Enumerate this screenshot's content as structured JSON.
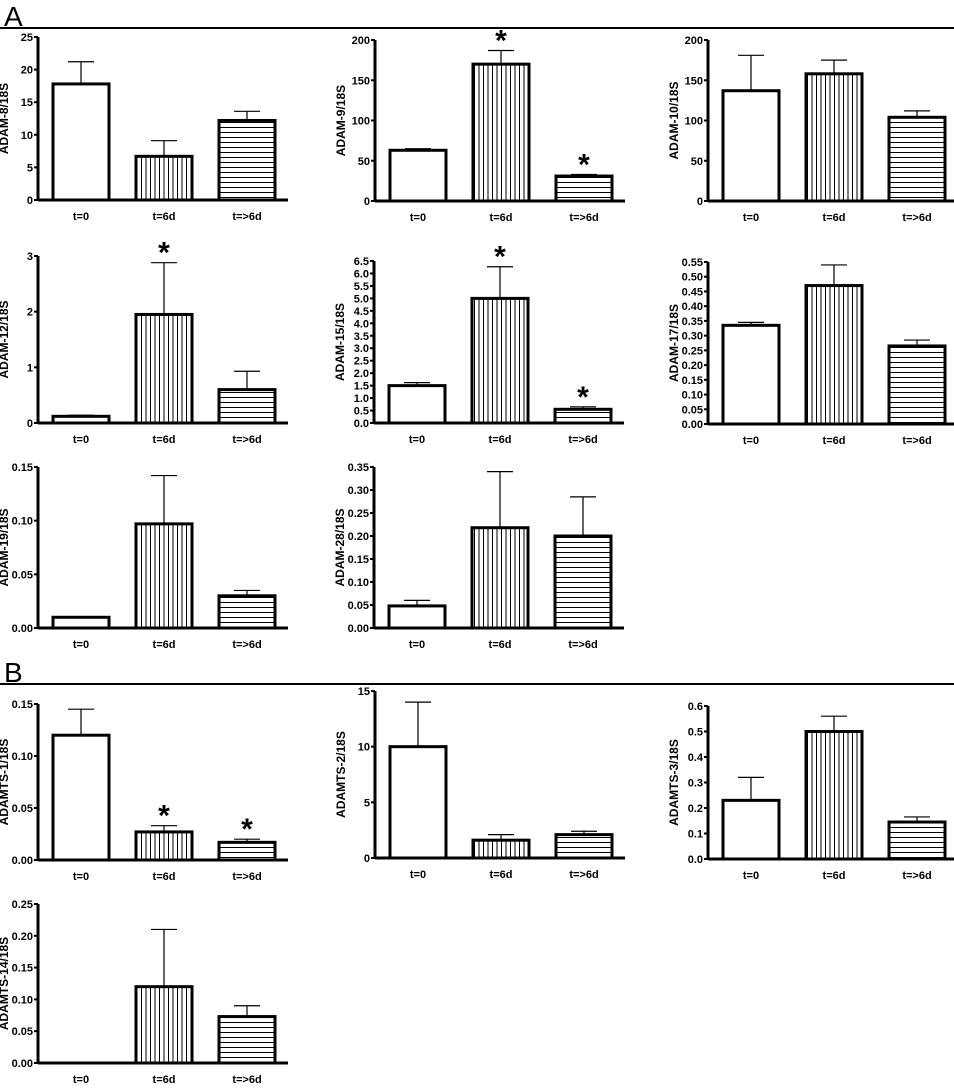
{
  "panels": [
    "A",
    "B"
  ],
  "chart_data": [
    {
      "type": "bar",
      "panel": "A",
      "ylabel": "ADAM-8/18S",
      "categories": [
        "t=0",
        "t=6d",
        "t=>6d"
      ],
      "values": [
        17.8,
        6.7,
        12.2
      ],
      "error": [
        3.4,
        2.4,
        1.4
      ],
      "significant": [
        false,
        false,
        false
      ],
      "ylim": [
        0,
        25
      ],
      "yticks": [
        "0",
        "5",
        "10",
        "15",
        "20",
        "25"
      ]
    },
    {
      "type": "bar",
      "panel": "A",
      "ylabel": "ADAM-9/18S",
      "categories": [
        "t=0",
        "t=6d",
        "t=>6d"
      ],
      "values": [
        63,
        170,
        31
      ],
      "error": [
        2,
        17,
        2
      ],
      "significant": [
        false,
        true,
        true
      ],
      "ylim": [
        0,
        200
      ],
      "yticks": [
        "0",
        "50",
        "100",
        "150",
        "200"
      ]
    },
    {
      "type": "bar",
      "panel": "A",
      "ylabel": "ADAM-10/18S",
      "categories": [
        "t=0",
        "t=6d",
        "t=>6d"
      ],
      "values": [
        137,
        158,
        104
      ],
      "error": [
        44,
        17,
        8
      ],
      "significant": [
        false,
        false,
        false
      ],
      "ylim": [
        0,
        200
      ],
      "yticks": [
        "0",
        "50",
        "100",
        "150",
        "200"
      ]
    },
    {
      "type": "bar",
      "panel": "A",
      "ylabel": "ADAM-12/18S",
      "categories": [
        "t=0",
        "t=6d",
        "t=>6d"
      ],
      "values": [
        0.12,
        1.95,
        0.6
      ],
      "error": [
        0.02,
        0.93,
        0.33
      ],
      "significant": [
        false,
        true,
        false
      ],
      "ylim": [
        0,
        3
      ],
      "yticks": [
        "0",
        "1",
        "2",
        "3"
      ]
    },
    {
      "type": "bar",
      "panel": "A",
      "ylabel": "ADAM-15/18S",
      "categories": [
        "t=0",
        "t=6d",
        "t=>6d"
      ],
      "values": [
        1.5,
        5.0,
        0.55
      ],
      "error": [
        0.12,
        1.27,
        0.1
      ],
      "significant": [
        false,
        true,
        true
      ],
      "ylim": [
        0,
        6.5
      ],
      "yticks": [
        "0.0",
        "0.5",
        "1.0",
        "1.5",
        "2.0",
        "2.5",
        "3.0",
        "3.5",
        "4.0",
        "4.5",
        "5.0",
        "5.5",
        "6.0",
        "6.5"
      ]
    },
    {
      "type": "bar",
      "panel": "A",
      "ylabel": "ADAM-17/18S",
      "categories": [
        "t=0",
        "t=6d",
        "t=>6d"
      ],
      "values": [
        0.335,
        0.47,
        0.265
      ],
      "error": [
        0.01,
        0.07,
        0.02
      ],
      "significant": [
        false,
        false,
        false
      ],
      "ylim": [
        0,
        0.55
      ],
      "yticks": [
        "0.00",
        "0.05",
        "0.10",
        "0.15",
        "0.20",
        "0.25",
        "0.30",
        "0.35",
        "0.40",
        "0.45",
        "0.50",
        "0.55"
      ]
    },
    {
      "type": "bar",
      "panel": "A",
      "ylabel": "ADAM-19/18S",
      "categories": [
        "t=0",
        "t=6d",
        "t=>6d"
      ],
      "values": [
        0.01,
        0.097,
        0.03
      ],
      "error": [
        0,
        0.045,
        0.005
      ],
      "significant": [
        false,
        false,
        false
      ],
      "ylim": [
        0,
        0.15
      ],
      "yticks": [
        "0.00",
        "0.05",
        "0.10",
        "0.15"
      ]
    },
    {
      "type": "bar",
      "panel": "A",
      "ylabel": "ADAM-28/18S",
      "categories": [
        "t=0",
        "t=6d",
        "t=>6d"
      ],
      "values": [
        0.048,
        0.218,
        0.2
      ],
      "error": [
        0.012,
        0.122,
        0.085
      ],
      "significant": [
        false,
        false,
        false
      ],
      "ylim": [
        0,
        0.35
      ],
      "yticks": [
        "0.00",
        "0.05",
        "0.10",
        "0.15",
        "0.20",
        "0.25",
        "0.30",
        "0.35"
      ]
    },
    {
      "type": "bar",
      "panel": "B",
      "ylabel": "ADAMTS-1/18S",
      "categories": [
        "t=0",
        "t=6d",
        "t=>6d"
      ],
      "values": [
        0.12,
        0.027,
        0.017
      ],
      "error": [
        0.025,
        0.006,
        0.003
      ],
      "significant": [
        false,
        true,
        true
      ],
      "ylim": [
        0,
        0.15
      ],
      "yticks": [
        "0.00",
        "0.05",
        "0.10",
        "0.15"
      ]
    },
    {
      "type": "bar",
      "panel": "B",
      "ylabel": "ADAMTS-2/18S",
      "categories": [
        "t=0",
        "t=6d",
        "t=>6d"
      ],
      "values": [
        10,
        1.6,
        2.1
      ],
      "error": [
        4,
        0.5,
        0.3
      ],
      "significant": [
        false,
        false,
        false
      ],
      "ylim": [
        0,
        15
      ],
      "yticks": [
        "0",
        "5",
        "10",
        "15"
      ]
    },
    {
      "type": "bar",
      "panel": "B",
      "ylabel": "ADAMTS-3/18S",
      "categories": [
        "t=0",
        "t=6d",
        "t=>6d"
      ],
      "values": [
        0.23,
        0.5,
        0.145
      ],
      "error": [
        0.09,
        0.06,
        0.02
      ],
      "significant": [
        false,
        false,
        false
      ],
      "ylim": [
        0,
        0.6
      ],
      "yticks": [
        "0.0",
        "0.1",
        "0.2",
        "0.3",
        "0.4",
        "0.5",
        "0.6"
      ]
    },
    {
      "type": "bar",
      "panel": "B",
      "ylabel": "ADAMTS-14/18S",
      "categories": [
        "t=0",
        "t=6d",
        "t=>6d"
      ],
      "values": [
        0,
        0.12,
        0.073
      ],
      "error": [
        0,
        0.09,
        0.017
      ],
      "significant": [
        false,
        false,
        false
      ],
      "ylim": [
        0,
        0.25
      ],
      "yticks": [
        "0.00",
        "0.05",
        "0.10",
        "0.15",
        "0.20",
        "0.25"
      ]
    }
  ]
}
